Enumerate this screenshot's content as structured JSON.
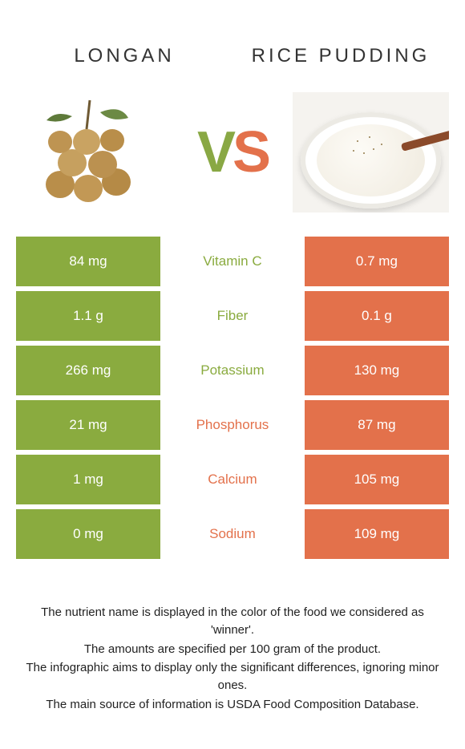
{
  "colors": {
    "green": "#8aab3f",
    "orange": "#e3714b",
    "text": "#333333",
    "white": "#ffffff"
  },
  "header": {
    "left_title": "Longan",
    "right_title": "Rice pudding"
  },
  "vs": {
    "v": "V",
    "s": "S"
  },
  "rows": [
    {
      "nutrient": "Vitamin C",
      "left": "84 mg",
      "right": "0.7 mg",
      "winner": "left"
    },
    {
      "nutrient": "Fiber",
      "left": "1.1 g",
      "right": "0.1 g",
      "winner": "left"
    },
    {
      "nutrient": "Potassium",
      "left": "266 mg",
      "right": "130 mg",
      "winner": "left"
    },
    {
      "nutrient": "Phosphorus",
      "left": "21 mg",
      "right": "87 mg",
      "winner": "right"
    },
    {
      "nutrient": "Calcium",
      "left": "1 mg",
      "right": "105 mg",
      "winner": "right"
    },
    {
      "nutrient": "Sodium",
      "left": "0 mg",
      "right": "109 mg",
      "winner": "right"
    }
  ],
  "footnotes": [
    "The nutrient name is displayed in the color of the food we considered as 'winner'.",
    "The amounts are specified per 100 gram of the product.",
    "The infographic aims to display only the significant differences, ignoring minor ones.",
    "The main source of information is USDA Food Composition Database."
  ]
}
